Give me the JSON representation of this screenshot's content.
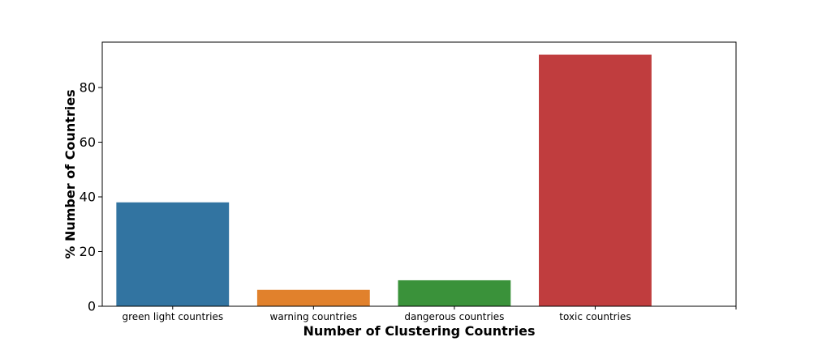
{
  "chart_data": {
    "type": "bar",
    "title": "",
    "xlabel": "Number of Clustering Countries",
    "ylabel": "% Number of Countries",
    "categories": [
      "green light countries",
      "warning countries",
      "dangerous countries",
      "toxic countries"
    ],
    "values": [
      38,
      6,
      9.5,
      92
    ],
    "colors": [
      "#3274a1",
      "#e1812c",
      "#3a923a",
      "#c03d3e"
    ],
    "ylim": [
      0,
      96.6
    ],
    "yticks": [
      0,
      20,
      40,
      60,
      80
    ],
    "x_slots": 4.5,
    "grid": false,
    "legend": "none"
  }
}
